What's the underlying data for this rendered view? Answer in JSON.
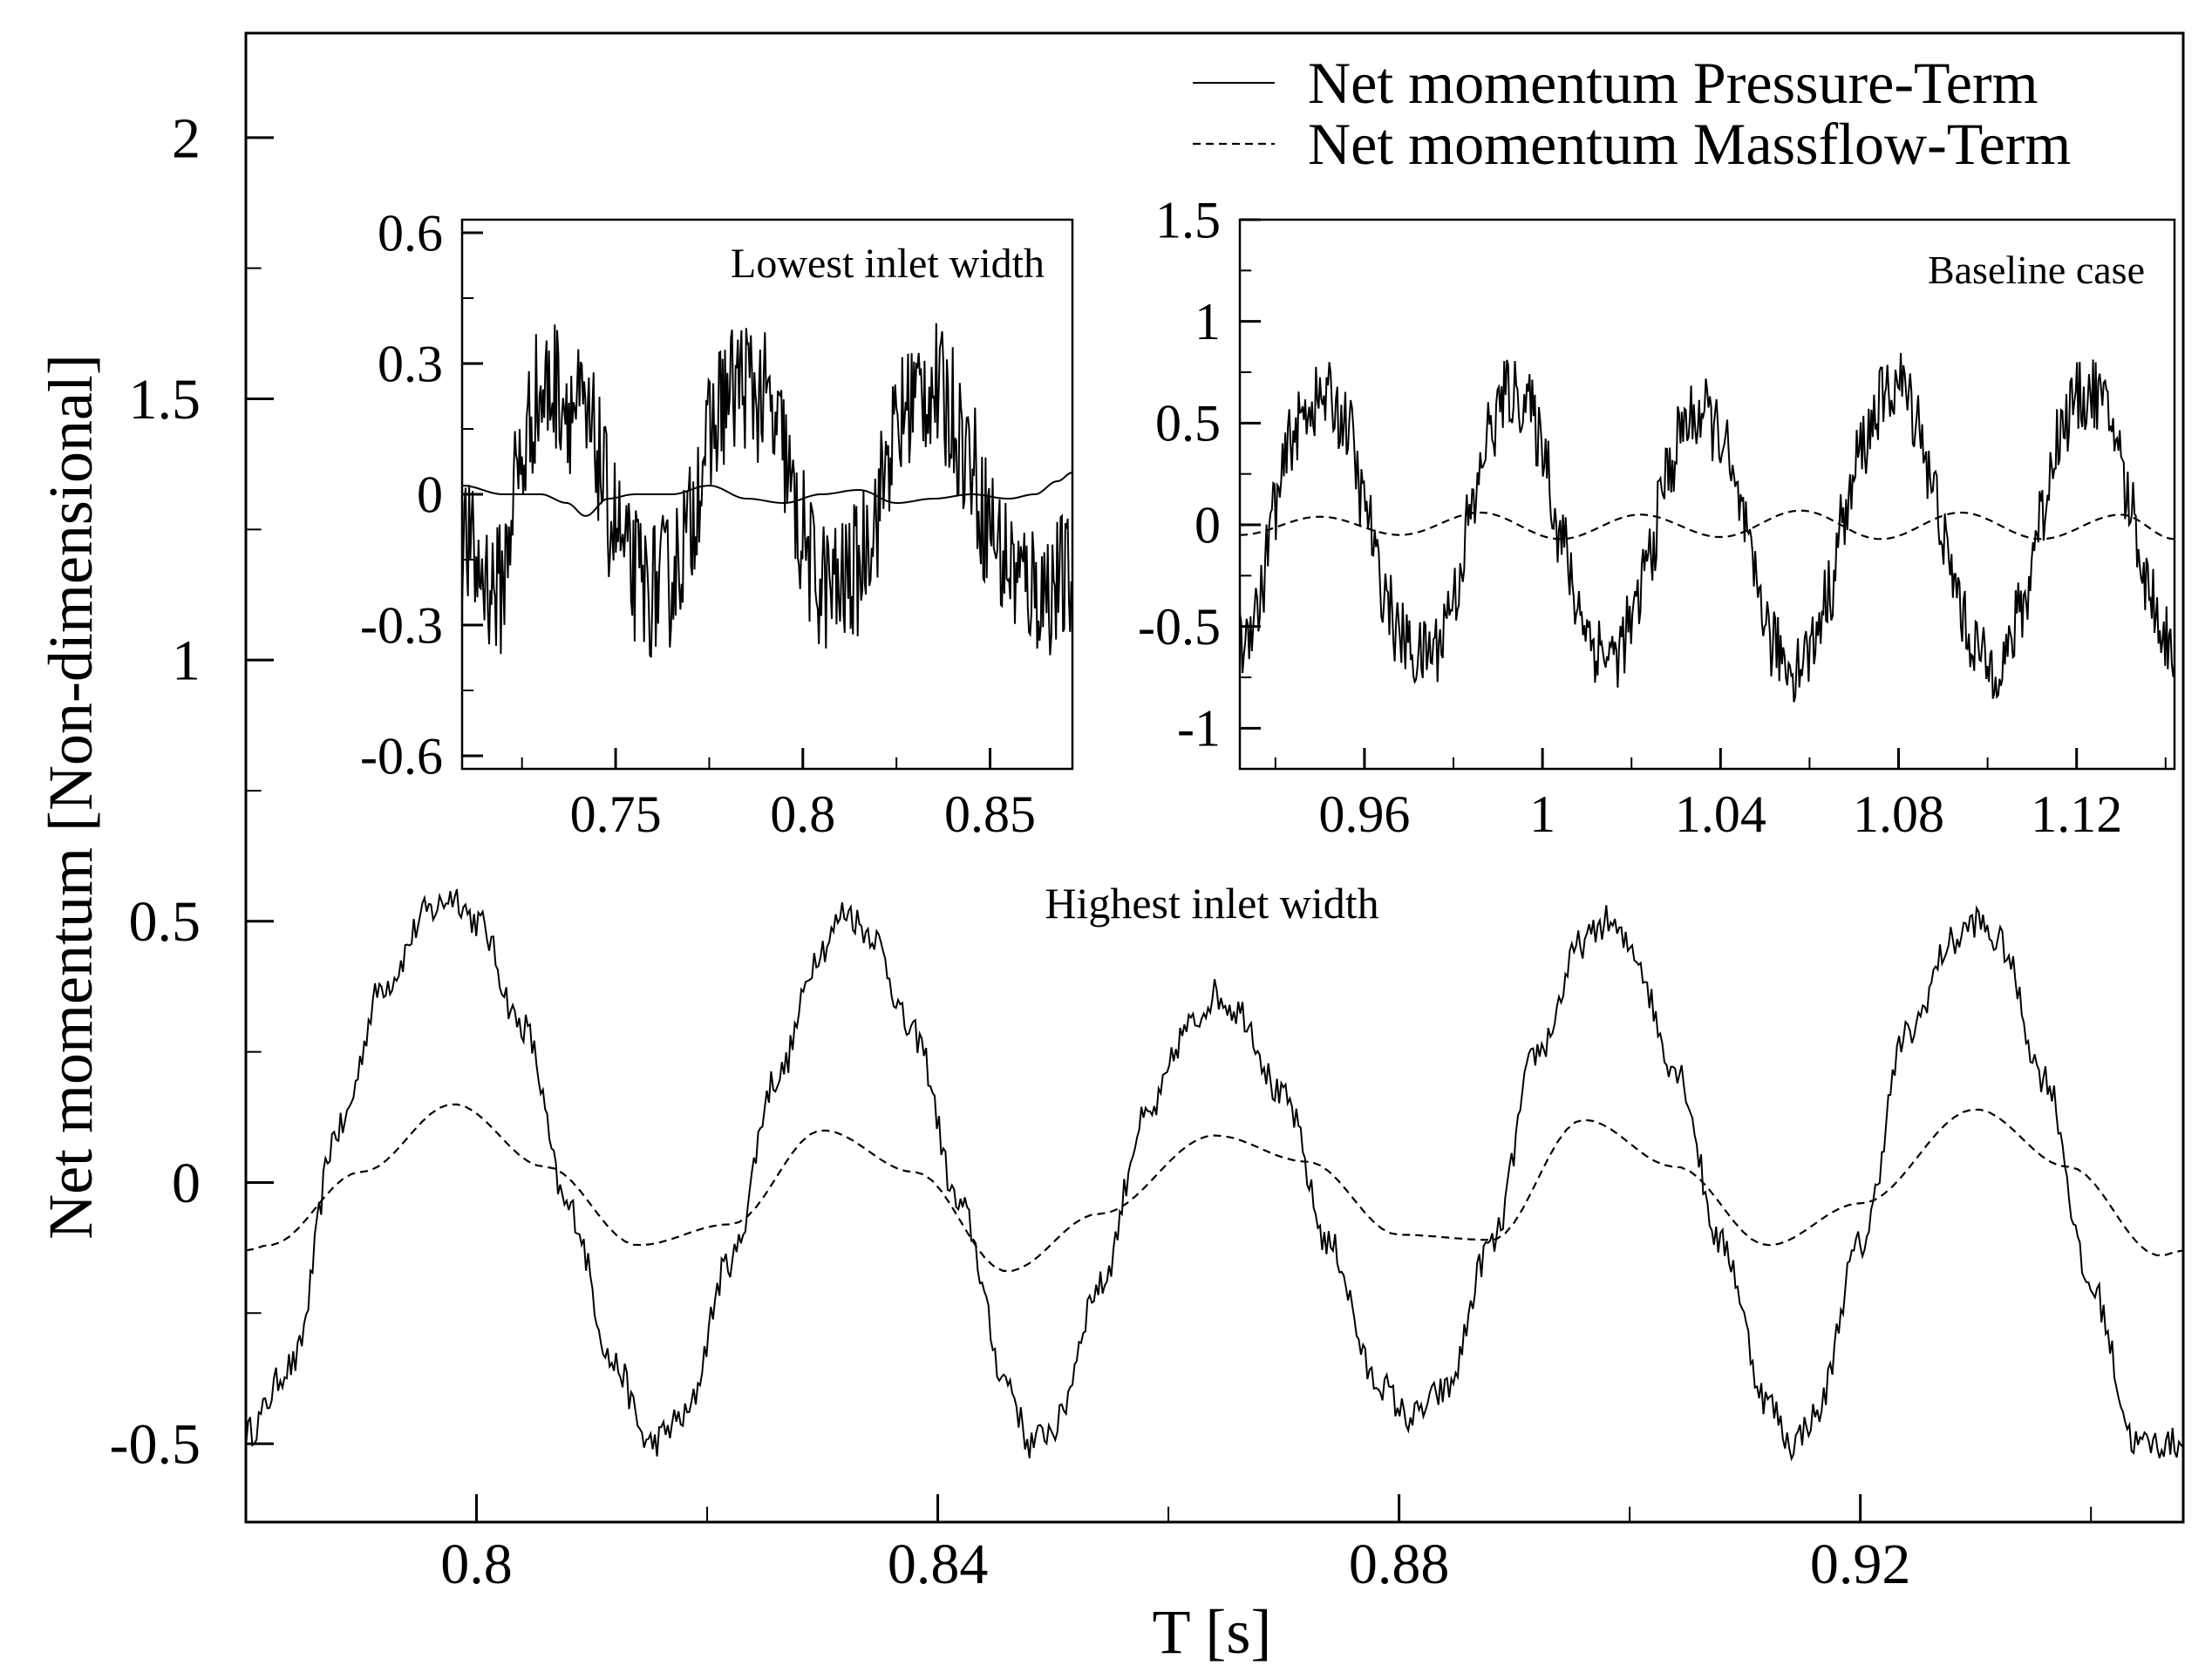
{
  "chart_data": [
    {
      "id": "main",
      "type": "line",
      "title": "Highest inlet width",
      "xlabel": "T [s]",
      "ylabel": "Net momentum [Non-dimensional]",
      "xlim": [
        0.78,
        0.948
      ],
      "ylim": [
        -0.65,
        2.2
      ],
      "xticks": [
        0.8,
        0.84,
        0.88,
        0.92
      ],
      "xtick_labels": [
        "0.8",
        "0.84",
        "0.88",
        "0.92"
      ],
      "yticks": [
        -0.5,
        0,
        0.5,
        1,
        1.5,
        2
      ],
      "ytick_labels": [
        "-0.5",
        "0",
        "0.5",
        "1",
        "1.5",
        "2"
      ],
      "grid": false,
      "legend": {
        "position": "top-right",
        "entries": [
          {
            "label": "Net momentum Pressure-Term",
            "style": "solid"
          },
          {
            "label": "Net momentum Massflow-Term",
            "style": "dashed"
          }
        ]
      },
      "series": [
        {
          "name": "Net momentum Pressure-Term",
          "style": "solid",
          "x": [
            0.78,
            0.784,
            0.788,
            0.792,
            0.796,
            0.798,
            0.8,
            0.804,
            0.808,
            0.812,
            0.815,
            0.818,
            0.822,
            0.826,
            0.83,
            0.832,
            0.834,
            0.838,
            0.842,
            0.846,
            0.848,
            0.85,
            0.854,
            0.858,
            0.862,
            0.864,
            0.866,
            0.87,
            0.874,
            0.878,
            0.881,
            0.884,
            0.888,
            0.892,
            0.896,
            0.898,
            0.9,
            0.904,
            0.908,
            0.912,
            0.914,
            0.916,
            0.92,
            0.924,
            0.928,
            0.93,
            0.932,
            0.936,
            0.94,
            0.944,
            0.948
          ],
          "y": [
            -0.48,
            -0.35,
            0.1,
            0.38,
            0.52,
            0.55,
            0.5,
            0.3,
            -0.05,
            -0.35,
            -0.5,
            -0.45,
            -0.15,
            0.2,
            0.45,
            0.52,
            0.48,
            0.28,
            -0.05,
            -0.38,
            -0.5,
            -0.47,
            -0.2,
            0.12,
            0.3,
            0.36,
            0.33,
            0.16,
            -0.12,
            -0.38,
            -0.45,
            -0.4,
            -0.12,
            0.25,
            0.46,
            0.5,
            0.45,
            0.22,
            -0.12,
            -0.42,
            -0.5,
            -0.45,
            -0.12,
            0.28,
            0.46,
            0.5,
            0.46,
            0.2,
            -0.2,
            -0.5,
            -0.5
          ]
        },
        {
          "name": "Net momentum Massflow-Term",
          "style": "dashed",
          "x": [
            0.78,
            0.782,
            0.79,
            0.798,
            0.806,
            0.814,
            0.822,
            0.83,
            0.838,
            0.846,
            0.854,
            0.864,
            0.872,
            0.88,
            0.888,
            0.896,
            0.904,
            0.912,
            0.92,
            0.93,
            0.938,
            0.946,
            0.948
          ],
          "y": [
            -0.13,
            -0.12,
            0.02,
            0.15,
            0.03,
            -0.12,
            -0.08,
            0.1,
            0.02,
            -0.17,
            -0.06,
            0.09,
            0.04,
            -0.1,
            -0.11,
            0.12,
            0.03,
            -0.12,
            -0.04,
            0.14,
            0.03,
            -0.14,
            -0.13
          ]
        }
      ]
    },
    {
      "id": "inset-left",
      "type": "line",
      "title": "Lowest inlet width",
      "xlim": [
        0.709,
        0.872
      ],
      "ylim": [
        -0.63,
        0.63
      ],
      "xticks": [
        0.75,
        0.8,
        0.85
      ],
      "xtick_labels": [
        "0.75",
        "0.8",
        "0.85"
      ],
      "yticks": [
        -0.6,
        -0.3,
        0,
        0.3,
        0.6
      ],
      "ytick_labels": [
        "-0.6",
        "-0.3",
        "0",
        "0.3",
        "0.6"
      ],
      "series": [
        {
          "name": "Net momentum Pressure-Term",
          "style": "solid",
          "x": [
            0.709,
            0.714,
            0.719,
            0.724,
            0.729,
            0.734,
            0.739,
            0.744,
            0.749,
            0.754,
            0.759,
            0.764,
            0.769,
            0.774,
            0.779,
            0.784,
            0.789,
            0.794,
            0.799,
            0.804,
            0.809,
            0.814,
            0.819,
            0.824,
            0.829,
            0.834,
            0.839,
            0.844,
            0.849,
            0.854,
            0.859,
            0.864,
            0.869,
            0.872
          ],
          "y": [
            -0.1,
            -0.18,
            -0.22,
            0.05,
            0.22,
            0.25,
            0.2,
            0.12,
            -0.05,
            -0.18,
            -0.22,
            -0.2,
            -0.1,
            0.1,
            0.22,
            0.26,
            0.22,
            0.12,
            -0.08,
            -0.2,
            -0.22,
            -0.18,
            -0.05,
            0.12,
            0.22,
            0.25,
            0.2,
            0.1,
            -0.05,
            -0.15,
            -0.2,
            -0.22,
            -0.2,
            -0.2
          ],
          "noise_amplitude": 0.16
        },
        {
          "name": "Net momentum Massflow-Term",
          "style": "solid",
          "x": [
            0.709,
            0.72,
            0.73,
            0.737,
            0.742,
            0.748,
            0.755,
            0.765,
            0.775,
            0.785,
            0.795,
            0.805,
            0.815,
            0.825,
            0.835,
            0.845,
            0.855,
            0.862,
            0.868,
            0.872
          ],
          "y": [
            0.02,
            0.0,
            0.0,
            -0.02,
            -0.05,
            -0.01,
            0.0,
            0.0,
            0.02,
            -0.01,
            -0.02,
            0.0,
            0.01,
            -0.02,
            -0.01,
            0.0,
            -0.01,
            0.0,
            0.03,
            0.05
          ]
        }
      ]
    },
    {
      "id": "inset-right",
      "type": "line",
      "title": "Baseline case",
      "xlim": [
        0.932,
        1.142
      ],
      "ylim": [
        -1.2,
        1.5
      ],
      "xticks": [
        0.96,
        1.0,
        1.04,
        1.08,
        1.12
      ],
      "xtick_labels": [
        "0.96",
        "1",
        "1.04",
        "1.08",
        "1.12"
      ],
      "yticks": [
        -1,
        -0.5,
        0,
        0.5,
        1,
        1.5
      ],
      "ytick_labels": [
        "-1",
        "-0.5",
        "0",
        "0.5",
        "1",
        "1.5"
      ],
      "series": [
        {
          "name": "Net momentum Pressure-Term",
          "style": "solid",
          "x": [
            0.932,
            0.936,
            0.94,
            0.944,
            0.948,
            0.952,
            0.956,
            0.96,
            0.964,
            0.968,
            0.972,
            0.976,
            0.98,
            0.984,
            0.988,
            0.992,
            0.996,
            1.0,
            1.004,
            1.008,
            1.012,
            1.016,
            1.02,
            1.024,
            1.028,
            1.032,
            1.036,
            1.04,
            1.044,
            1.048,
            1.052,
            1.056,
            1.06,
            1.064,
            1.068,
            1.072,
            1.076,
            1.08,
            1.084,
            1.088,
            1.092,
            1.096,
            1.1,
            1.104,
            1.108,
            1.112,
            1.116,
            1.12,
            1.124,
            1.128,
            1.132,
            1.136,
            1.14,
            1.142
          ],
          "y": [
            -0.6,
            -0.4,
            0.1,
            0.45,
            0.6,
            0.62,
            0.5,
            0.1,
            -0.3,
            -0.55,
            -0.65,
            -0.6,
            -0.35,
            0.05,
            0.45,
            0.65,
            0.62,
            0.4,
            -0.05,
            -0.4,
            -0.6,
            -0.65,
            -0.5,
            -0.15,
            0.25,
            0.5,
            0.55,
            0.45,
            0.1,
            -0.3,
            -0.6,
            -0.7,
            -0.62,
            -0.35,
            0.05,
            0.4,
            0.6,
            0.7,
            0.55,
            0.15,
            -0.25,
            -0.55,
            -0.7,
            -0.65,
            -0.4,
            0.05,
            0.45,
            0.62,
            0.65,
            0.5,
            0.1,
            -0.3,
            -0.55,
            -0.6
          ],
          "noise_amplitude": 0.18
        },
        {
          "name": "Net momentum Massflow-Term",
          "style": "dashed",
          "x": [
            0.932,
            0.95,
            0.968,
            0.986,
            1.004,
            1.022,
            1.04,
            1.058,
            1.076,
            1.094,
            1.112,
            1.13,
            1.142
          ],
          "y": [
            -0.05,
            0.04,
            -0.05,
            0.06,
            -0.07,
            0.05,
            -0.06,
            0.07,
            -0.07,
            0.06,
            -0.07,
            0.05,
            -0.07
          ]
        }
      ]
    }
  ]
}
